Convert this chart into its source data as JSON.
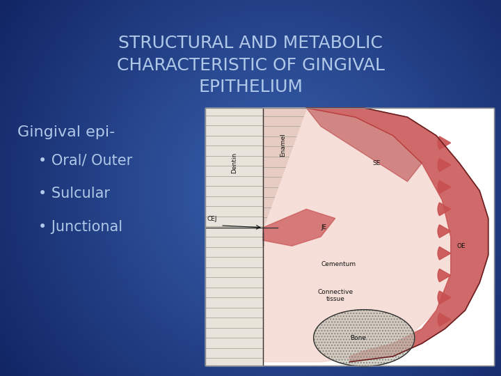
{
  "title_line1": "STRUCTURAL AND METABOLIC",
  "title_line2": "CHARACTERISTIC OF GINGIVAL",
  "title_line3": "EPITHELIUM",
  "title_color": "#b0c8e8",
  "title_fontsize": 18,
  "bg_color_center": "#3a62b0",
  "bg_color_edge": "#0d1f5c",
  "text_color": "#b0c8e8",
  "heading_text": "Gingival epi-",
  "heading_fontsize": 16,
  "bullet_items": [
    "• Oral/ Outer",
    "• Sulcular",
    "• Junctional"
  ],
  "bullet_fontsize": 15,
  "img_bg": "#f0e8e0",
  "dentin_color": "#e8e4dc",
  "enamel_color": "#d8d4c8",
  "ct_color": "#f0c8c0",
  "red_color": "#c85050",
  "red_dark": "#b03030",
  "bone_color": "#c8c4b8",
  "label_color": "#111111"
}
